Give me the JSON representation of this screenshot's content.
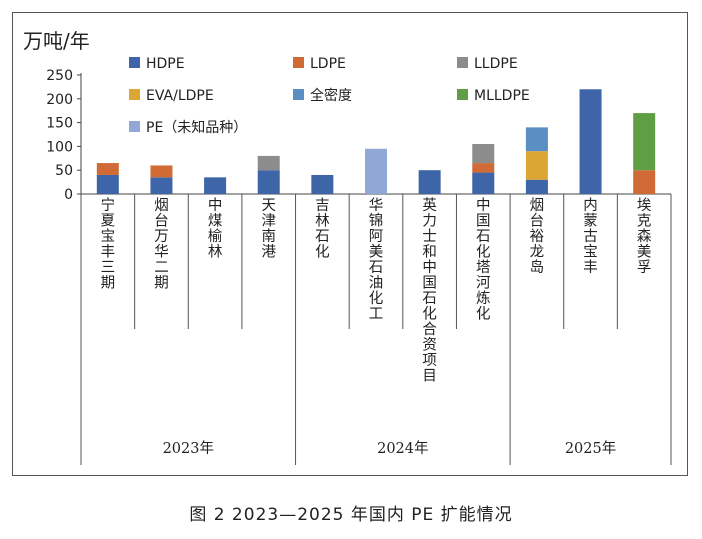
{
  "caption": "图 2  2023—2025 年国内 PE 扩能情况",
  "chart_data": {
    "type": "bar",
    "stacked": true,
    "ylabel": "万吨/年",
    "ylim": [
      0,
      250
    ],
    "yticks": [
      0,
      50,
      100,
      150,
      200,
      250
    ],
    "grid": false,
    "legend_position": "top-left",
    "categories": [
      "宁夏宝丰三期",
      "烟台万华二期",
      "中煤榆林",
      "天津南港",
      "吉林石化",
      "华锦阿美石油化工",
      "英力士和中国石化合资项目",
      "中国石化塔河炼化",
      "烟台裕龙岛",
      "内蒙古宝丰",
      "埃克森美孚"
    ],
    "groups": [
      {
        "label": "2023年",
        "size": 4
      },
      {
        "label": "2024年",
        "size": 4
      },
      {
        "label": "2025年",
        "size": 3
      }
    ],
    "series": [
      {
        "name": "HDPE",
        "color": "#3d65a8",
        "values": [
          40,
          35,
          35,
          50,
          40,
          0,
          50,
          45,
          30,
          220,
          0
        ]
      },
      {
        "name": "LDPE",
        "color": "#d06b36",
        "values": [
          25,
          25,
          0,
          0,
          0,
          0,
          0,
          20,
          0,
          0,
          50
        ]
      },
      {
        "name": "LLDPE",
        "color": "#8c8c8c",
        "values": [
          0,
          0,
          0,
          30,
          0,
          0,
          0,
          40,
          0,
          0,
          0
        ]
      },
      {
        "name": "EVA/LDPE",
        "color": "#dca635",
        "values": [
          0,
          0,
          0,
          0,
          0,
          0,
          0,
          0,
          60,
          0,
          0
        ]
      },
      {
        "name": "全密度",
        "color": "#5b8fc4",
        "values": [
          0,
          0,
          0,
          0,
          0,
          0,
          0,
          0,
          50,
          0,
          0
        ]
      },
      {
        "name": "MLLDPE",
        "color": "#5f9e45",
        "values": [
          0,
          0,
          0,
          0,
          0,
          0,
          0,
          0,
          0,
          0,
          120
        ]
      },
      {
        "name": "PE（未知品种）",
        "color": "#91a7d6",
        "values": [
          0,
          0,
          0,
          0,
          0,
          95,
          0,
          0,
          0,
          0,
          0
        ]
      }
    ]
  }
}
